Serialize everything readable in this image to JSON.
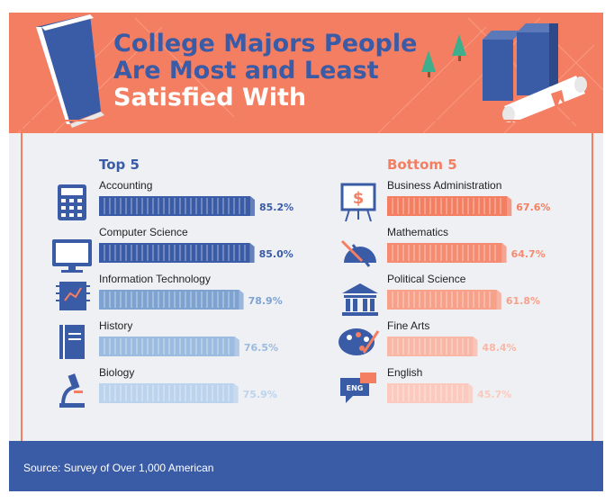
{
  "title": {
    "line1": "College Majors People",
    "line2": "Are Most and Least",
    "line3": "Satisfied With"
  },
  "top_heading": "Top 5",
  "bottom_heading": "Bottom 5",
  "source": "Source: Survey of Over 1,000 American",
  "colors": {
    "header_bg": "#f47e62",
    "panel_bg": "#eef0f3",
    "footer_bg": "#3a5ba6",
    "blue_shades": [
      "#3a5ba6",
      "#3a5ba6",
      "#7fa3d1",
      "#9cbbe1",
      "#bcd3ee"
    ],
    "orange_shades": [
      "#f47e62",
      "#f58b71",
      "#f7a08a",
      "#f9b7a6",
      "#fbc9bd"
    ]
  },
  "chart_data": [
    {
      "type": "bar",
      "title": "Top 5",
      "categories": [
        "Accounting",
        "Computer Science",
        "Information Technology",
        "History",
        "Biology"
      ],
      "values": [
        85.2,
        85.0,
        78.9,
        76.5,
        75.9
      ],
      "value_labels": [
        "85.2%",
        "85.0%",
        "78.9%",
        "76.5%",
        "75.9%"
      ],
      "icons": [
        "calculator-icon",
        "monitor-icon",
        "circuit-board-icon",
        "book-icon",
        "microscope-icon"
      ],
      "unit": "%"
    },
    {
      "type": "bar",
      "title": "Bottom 5",
      "categories": [
        "Business Administration",
        "Mathematics",
        "Political Science",
        "Fine Arts",
        "English"
      ],
      "values": [
        67.6,
        64.7,
        61.8,
        48.4,
        45.7
      ],
      "value_labels": [
        "67.6%",
        "64.7%",
        "61.8%",
        "48.4%",
        "45.7%"
      ],
      "icons": [
        "presentation-board-icon",
        "geometry-tools-icon",
        "columns-building-icon",
        "paint-palette-icon",
        "speech-bubble-icon"
      ],
      "unit": "%"
    }
  ]
}
